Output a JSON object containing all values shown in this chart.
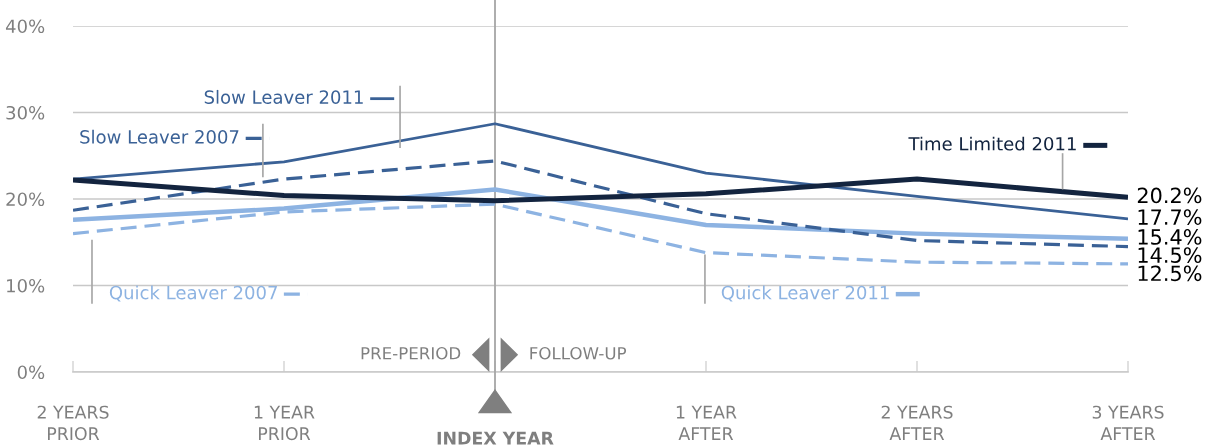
{
  "chart_data": {
    "type": "line",
    "x": [
      -2,
      -1,
      0,
      1,
      2,
      3
    ],
    "xlim": [
      -2,
      3
    ],
    "xticks": [
      {
        "value": -2,
        "label": "2 YEARS\nPRIOR"
      },
      {
        "value": -1,
        "label": "1 YEAR\nPRIOR"
      },
      {
        "value": 0,
        "label": "INDEX YEAR"
      },
      {
        "value": 1,
        "label": "1 YEAR\nAFTER"
      },
      {
        "value": 2,
        "label": "2 YEARS\nAFTER"
      },
      {
        "value": 3,
        "label": "3 YEARS\nAFTER"
      }
    ],
    "ylim": [
      0,
      40
    ],
    "yticks": [
      {
        "value": 0,
        "label": "0%"
      },
      {
        "value": 10,
        "label": "10%"
      },
      {
        "value": 20,
        "label": "20%"
      },
      {
        "value": 30,
        "label": "30%"
      },
      {
        "value": 40,
        "label": "40%"
      }
    ],
    "grid": "y",
    "legend": "top",
    "marker": "none",
    "ref_lines": [
      {
        "axis": "x",
        "value": 0,
        "color": "#a6a6a6"
      }
    ],
    "annotations": [
      {
        "text": "PRE-PERIOD",
        "x": 0,
        "y": 2
      },
      {
        "text": "FOLLOW-UP",
        "x": 0,
        "y": 2
      }
    ],
    "series": [
      {
        "name": "Time Limited 2011",
        "color": "#13243f",
        "line_style": "solid",
        "values": [
          22.2,
          20.4,
          19.8,
          20.6,
          22.3,
          20.2
        ],
        "value_labels": [
          null,
          null,
          null,
          null,
          null,
          "20.2%"
        ]
      },
      {
        "name": "Slow Leaver 2011",
        "color": "#3a6196",
        "line_style": "solid",
        "values": [
          22.3,
          24.3,
          28.7,
          23.0,
          20.3,
          17.7
        ],
        "value_labels": [
          null,
          null,
          null,
          null,
          null,
          "17.7%"
        ]
      },
      {
        "name": "Slow Leaver 2007",
        "color": "#3a6196",
        "line_style": "dashed",
        "values": [
          18.7,
          22.3,
          24.4,
          18.3,
          15.2,
          14.5
        ],
        "value_labels": [
          null,
          null,
          null,
          null,
          null,
          "14.5%"
        ]
      },
      {
        "name": "Quick Leaver 2011",
        "color": "#8db3e2",
        "line_style": "solid",
        "values": [
          17.6,
          18.9,
          21.1,
          17.0,
          16.0,
          15.4
        ],
        "value_labels": [
          null,
          null,
          null,
          null,
          null,
          "15.4%"
        ]
      },
      {
        "name": "Quick Leaver 2007",
        "color": "#8db3e2",
        "line_style": "dashed",
        "values": [
          16.0,
          18.5,
          19.4,
          13.8,
          12.7,
          12.5
        ],
        "value_labels": [
          null,
          null,
          null,
          null,
          null,
          "12.5%"
        ]
      }
    ]
  }
}
